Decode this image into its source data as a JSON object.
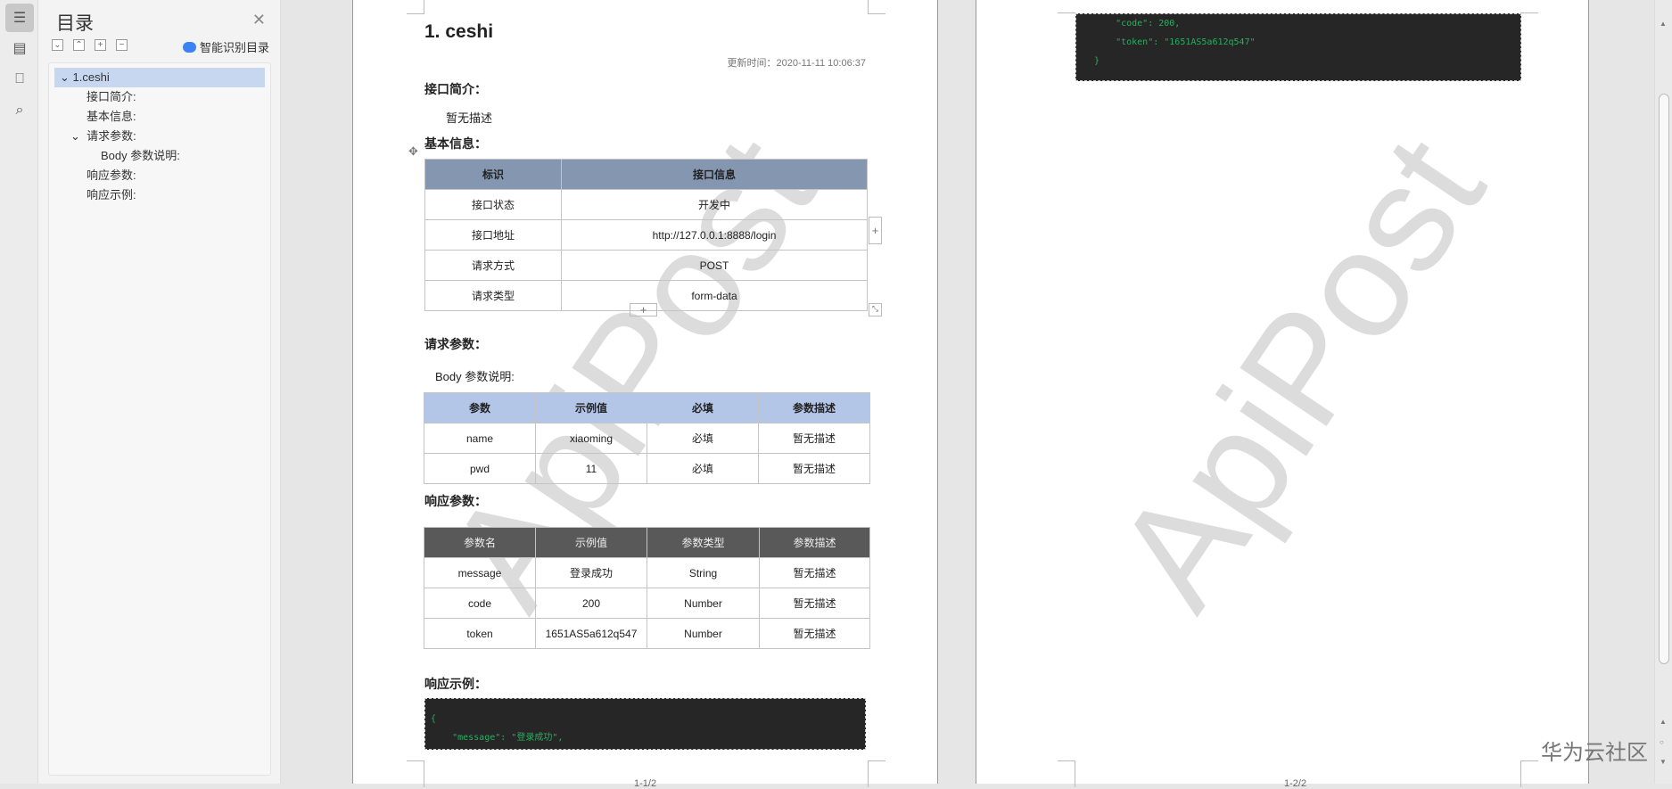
{
  "sidebar": {
    "icons": [
      "toc-icon",
      "document-list-icon",
      "bookmark-icon",
      "search-icon"
    ]
  },
  "toc": {
    "title": "目录",
    "smart_label": "智能识别目录",
    "tools": [
      "expand-icon",
      "collapse-icon",
      "plus-icon",
      "minus-icon"
    ],
    "items": [
      {
        "label": "1.ceshi"
      },
      {
        "label": "接口简介:"
      },
      {
        "label": "基本信息:"
      },
      {
        "label": "请求参数:"
      },
      {
        "label": "Body 参数说明:"
      },
      {
        "label": "响应参数:"
      },
      {
        "label": "响应示例:"
      }
    ]
  },
  "doc": {
    "title": "1. ceshi",
    "update_time": "更新时间：2020-11-11 10:06:37",
    "intro_heading": "接口简介：",
    "intro_text": "暂无描述",
    "basic_heading": "基本信息：",
    "basic_table": {
      "headers": [
        "标识",
        "接口信息"
      ],
      "rows": [
        [
          "接口状态",
          "开发中"
        ],
        [
          "接口地址",
          "http://127.0.0.1:8888/login"
        ],
        [
          "请求方式",
          "POST"
        ],
        [
          "请求类型",
          "form-data"
        ]
      ],
      "header_color": "#8496b0"
    },
    "req_heading": "请求参数：",
    "body_label": "Body 参数说明:",
    "body_table": {
      "headers": [
        "参数",
        "示例值",
        "必填",
        "参数描述"
      ],
      "rows": [
        [
          "name",
          "xiaoming",
          "必填",
          "暂无描述"
        ],
        [
          "pwd",
          "11",
          "必填",
          "暂无描述"
        ]
      ],
      "header_color": "#b4c6e7"
    },
    "resp_heading": "响应参数：",
    "resp_table": {
      "headers": [
        "参数名",
        "示例值",
        "参数类型",
        "参数描述"
      ],
      "rows": [
        [
          "message",
          "登录成功",
          "String",
          "暂无描述"
        ],
        [
          "code",
          "200",
          "Number",
          "暂无描述"
        ],
        [
          "token",
          "1651AS5a612q547",
          "Number",
          "暂无描述"
        ]
      ],
      "header_color": "#595959"
    },
    "example_heading": "响应示例：",
    "code_page1": [
      "{",
      "    \"message\": \"登录成功\","
    ],
    "code_page2": [
      "    \"code\": 200,",
      "    \"token\": \"1651AS5a612q547\"",
      "}"
    ],
    "watermark": "ApiPost",
    "page1_num": "1-1/2",
    "page2_num": "1-2/2"
  },
  "brand": "华为云社区"
}
